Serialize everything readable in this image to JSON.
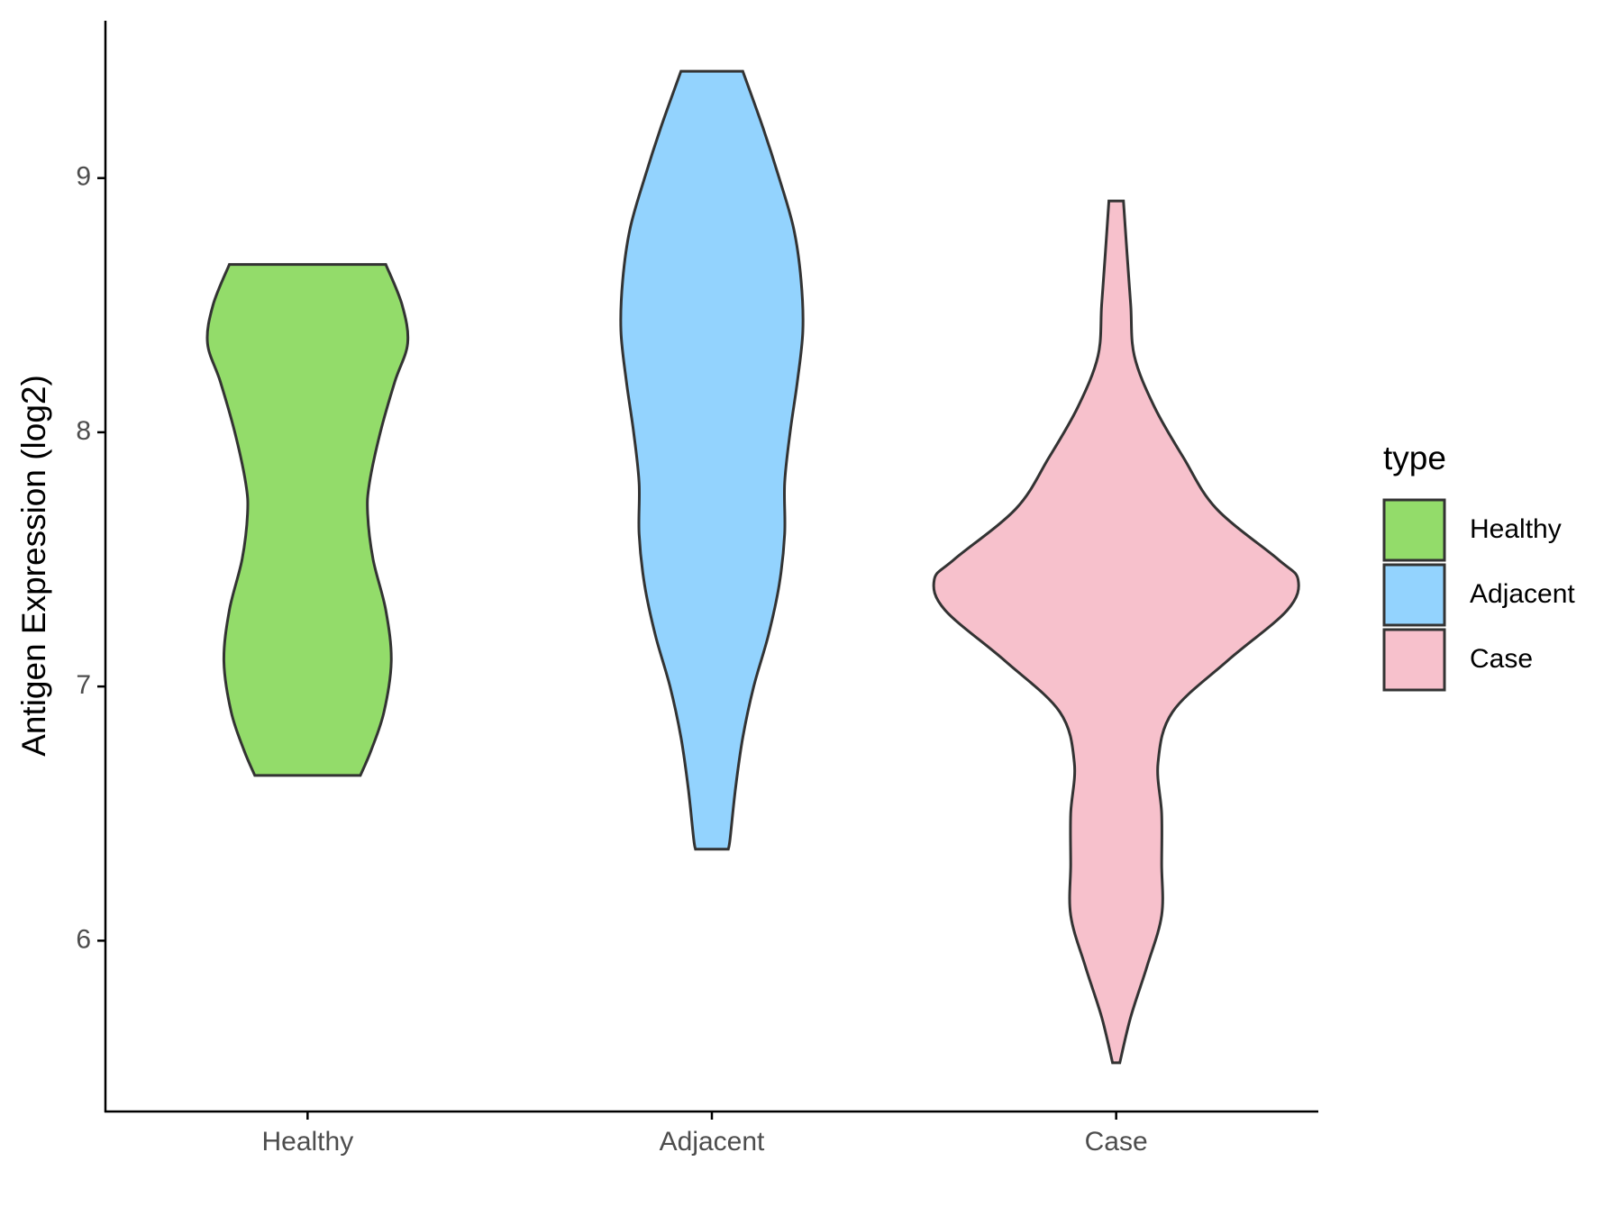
{
  "chart_data": {
    "type": "violin",
    "y_label": "Antigen Expression (log2)",
    "categories": [
      "Healthy",
      "Adjacent",
      "Case"
    ],
    "legend_title": "type",
    "legend_position": "right",
    "ylim": [
      5.328,
      9.619
    ],
    "yticks": [
      6,
      7,
      8,
      9
    ],
    "grid": false,
    "series": [
      {
        "name": "Healthy",
        "color": "#93dc6a",
        "y": [
          8.66,
          8.5,
          8.35,
          8.2,
          8.0,
          7.8,
          7.68,
          7.5,
          7.3,
          7.1,
          6.9,
          6.75,
          6.65
        ],
        "density": [
          0.43,
          0.52,
          0.55,
          0.48,
          0.4,
          0.34,
          0.33,
          0.36,
          0.43,
          0.46,
          0.42,
          0.35,
          0.29
        ]
      },
      {
        "name": "Adjacent",
        "color": "#93d3fe",
        "y": [
          9.42,
          9.2,
          9.0,
          8.8,
          8.6,
          8.4,
          8.2,
          8.0,
          7.8,
          7.6,
          7.4,
          7.2,
          7.0,
          6.8,
          6.6,
          6.4,
          6.36
        ],
        "density": [
          0.17,
          0.28,
          0.37,
          0.45,
          0.49,
          0.5,
          0.47,
          0.43,
          0.4,
          0.4,
          0.37,
          0.31,
          0.23,
          0.17,
          0.13,
          0.1,
          0.09
        ]
      },
      {
        "name": "Case",
        "color": "#f7c1cc",
        "y": [
          8.91,
          8.7,
          8.5,
          8.3,
          8.1,
          7.9,
          7.7,
          7.5,
          7.42,
          7.3,
          7.1,
          6.9,
          6.7,
          6.5,
          6.3,
          6.1,
          5.9,
          5.7,
          5.52
        ],
        "density": [
          0.04,
          0.06,
          0.08,
          0.1,
          0.21,
          0.37,
          0.55,
          0.89,
          1.0,
          0.94,
          0.61,
          0.31,
          0.23,
          0.25,
          0.25,
          0.25,
          0.17,
          0.08,
          0.02
        ]
      }
    ]
  }
}
